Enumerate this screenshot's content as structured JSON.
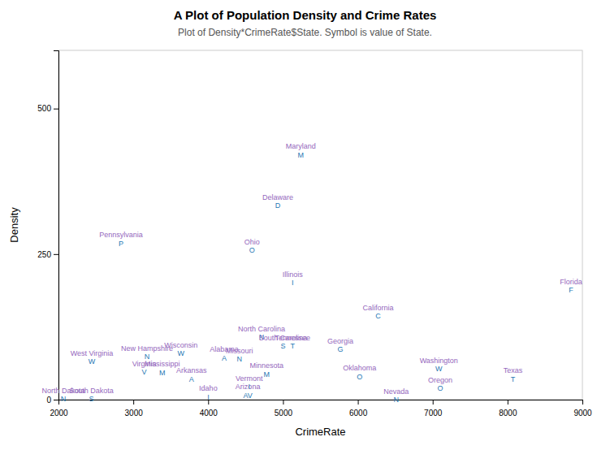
{
  "chart_data": {
    "type": "scatter",
    "title": "A Plot of Population Density and Crime Rates",
    "subtitle": "Plot of Density*CrimeRate$State.  Symbol is value of State.",
    "xlabel": "CrimeRate",
    "ylabel": "Density",
    "labels": [
      "Alabama",
      "Arizona",
      "Arkansas",
      "California",
      "Delaware",
      "Florida",
      "Georgia",
      "Idaho",
      "Illinois",
      "Maryland",
      "Minnesota",
      "Mississippi",
      "Missouri",
      "Nevada",
      "New Hampshire",
      "North Carolina",
      "North Dakota",
      "Ohio",
      "Oklahoma",
      "Oregon",
      "Pennsylvania",
      "South Carolina",
      "South Dakota",
      "Tennessee",
      "Texas",
      "Vermont",
      "Virginia",
      "Washington",
      "West Virginia",
      "Wisconsin"
    ],
    "symbols": [
      "A",
      "AV",
      "A",
      "C",
      "D",
      "F",
      "G",
      "I",
      "I",
      "M",
      "M",
      "M",
      "N",
      "N",
      "N",
      "N",
      "N",
      "O",
      "O",
      "O",
      "P",
      "S",
      "S",
      "T",
      "T",
      "I",
      "V",
      "W",
      "W",
      "W"
    ],
    "x": [
      4215,
      4530,
      3776,
      6270,
      4930,
      8847,
      5765,
      4001,
      5127,
      5237,
      4782,
      3386,
      4418,
      6512,
      3182,
      4713,
      2065,
      4585,
      6023,
      7100,
      2836,
      5000,
      2440,
      5128,
      8073,
      4548,
      3146,
      7082,
      2445,
      3637
    ],
    "values": [
      79,
      15,
      43,
      151,
      341,
      196,
      94,
      12,
      208,
      428,
      51,
      54,
      77,
      7,
      81,
      115,
      9,
      264,
      47,
      27,
      276,
      99,
      9,
      99,
      43,
      30,
      55,
      60,
      73,
      87
    ],
    "xlim": [
      2000,
      9000
    ],
    "xticks": [
      2000,
      3000,
      4000,
      5000,
      6000,
      7000,
      8000,
      9000
    ],
    "ylim": [
      0,
      600
    ],
    "yticks": [
      0,
      250,
      500
    ],
    "grid": false
  }
}
